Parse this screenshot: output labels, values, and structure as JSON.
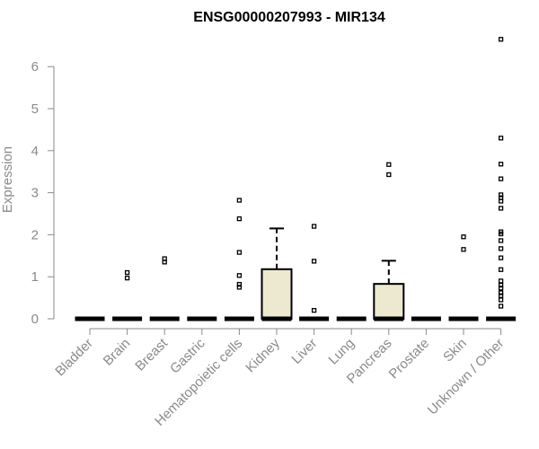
{
  "chart_data": {
    "type": "box",
    "title": "ENSG00000207993 - MIR134",
    "xlabel": "",
    "ylabel": "Expression",
    "ylim": [
      0,
      6.8
    ],
    "yticks": [
      0,
      1,
      2,
      3,
      4,
      5,
      6
    ],
    "box_fill": "#ede8d0",
    "categories": [
      "Bladder",
      "Brain",
      "Breast",
      "Gastric",
      "Hematopoietic cells",
      "Kidney",
      "Liver",
      "Lung",
      "Pancreas",
      "Prostate",
      "Skin",
      "Unknown / Other"
    ],
    "boxes": [
      {
        "q1": 0,
        "median": 0,
        "q3": 0,
        "whisker_low": 0,
        "whisker_high": 0,
        "outliers": []
      },
      {
        "q1": 0,
        "median": 0,
        "q3": 0,
        "whisker_low": 0,
        "whisker_high": 0,
        "outliers": [
          0.97,
          1.1
        ]
      },
      {
        "q1": 0,
        "median": 0,
        "q3": 0,
        "whisker_low": 0,
        "whisker_high": 0,
        "outliers": [
          1.35,
          1.43
        ]
      },
      {
        "q1": 0,
        "median": 0,
        "q3": 0,
        "whisker_low": 0,
        "whisker_high": 0,
        "outliers": []
      },
      {
        "q1": 0,
        "median": 0,
        "q3": 0,
        "whisker_low": 0,
        "whisker_high": 0,
        "outliers": [
          0.75,
          0.82,
          1.03,
          1.58,
          2.38,
          2.82
        ]
      },
      {
        "q1": 0,
        "median": 0,
        "q3": 1.18,
        "whisker_low": 0,
        "whisker_high": 2.15,
        "outliers": []
      },
      {
        "q1": 0,
        "median": 0,
        "q3": 0,
        "whisker_low": 0,
        "whisker_high": 0,
        "outliers": [
          0.2,
          1.37,
          2.2
        ]
      },
      {
        "q1": 0,
        "median": 0,
        "q3": 0,
        "whisker_low": 0,
        "whisker_high": 0,
        "outliers": []
      },
      {
        "q1": 0,
        "median": 0,
        "q3": 0.83,
        "whisker_low": 0,
        "whisker_high": 1.38,
        "outliers": [
          3.43,
          3.67
        ]
      },
      {
        "q1": 0,
        "median": 0,
        "q3": 0,
        "whisker_low": 0,
        "whisker_high": 0,
        "outliers": []
      },
      {
        "q1": 0,
        "median": 0,
        "q3": 0,
        "whisker_low": 0,
        "whisker_high": 0,
        "outliers": [
          1.65,
          1.95
        ]
      },
      {
        "q1": 0,
        "median": 0,
        "q3": 0,
        "whisker_low": 0,
        "whisker_high": 0,
        "outliers": [
          0.3,
          0.45,
          0.55,
          0.62,
          0.73,
          0.8,
          0.9,
          1.17,
          1.45,
          1.67,
          1.86,
          2.02,
          2.07,
          2.63,
          2.8,
          2.88,
          2.95,
          3.33,
          3.68,
          4.3,
          6.65
        ]
      }
    ]
  }
}
